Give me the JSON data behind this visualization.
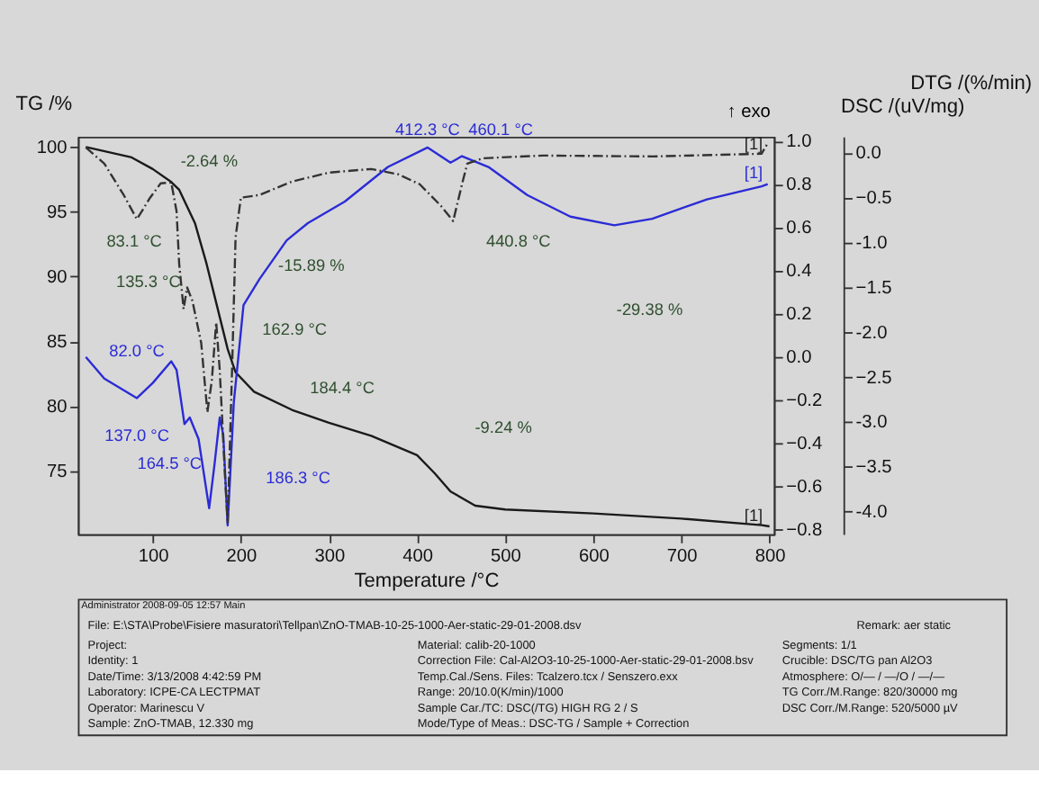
{
  "chart_data": [
    {
      "type": "line",
      "xlabel": "Temperature /°C",
      "ylabel": "TG /%",
      "y2label": "DSC /(uV/mg)",
      "y3label": "DTG /(%/min)",
      "xlim": [
        15,
        805
      ],
      "xticks": [
        100,
        200,
        300,
        400,
        500,
        600,
        700,
        800
      ],
      "ylim": [
        70.1,
        100.8
      ],
      "yticks": [
        75,
        80,
        85,
        90,
        95,
        100
      ],
      "y2lim": [
        -0.82,
        1.02
      ],
      "y2ticks": [
        -0.8,
        -0.6,
        -0.4,
        -0.2,
        {
          "value": 0,
          "label": "0.0"
        },
        0.2,
        0.4,
        0.6,
        0.8,
        {
          "value": 1,
          "label": "1.0"
        }
      ],
      "y3lim": [
        -4.25,
        0.18
      ],
      "y3ticks": [
        {
          "value": -4,
          "label": "-4.0"
        },
        -3.5,
        {
          "value": -3,
          "label": "-3.0"
        },
        -2.5,
        {
          "value": -2,
          "label": "-2.0"
        },
        -1.5,
        {
          "value": -1,
          "label": "-1.0"
        },
        -0.5,
        {
          "value": 0,
          "label": "0.0"
        }
      ],
      "grid": false,
      "marker": "none",
      "series": [
        {
          "color": "#1a1a1a",
          "axis": "y",
          "line_style": "solid",
          "x": [
            24,
            76,
            100,
            121,
            130,
            148,
            161,
            173,
            185,
            194,
            215,
            258,
            300,
            348,
            400,
            420,
            438,
            466,
            500,
            600,
            700,
            791,
            800
          ],
          "values": [
            100,
            99.2,
            98.3,
            97.3,
            96.7,
            94.1,
            91.0,
            87.7,
            84.4,
            82.6,
            81.1,
            79.7,
            78.7,
            77.7,
            76.2,
            74.8,
            73.4,
            72.3,
            72.0,
            71.7,
            71.3,
            70.8,
            70.7
          ]
        },
        {
          "color": "#2b2bd6",
          "axis": "y2",
          "line_style": "solid",
          "x": [
            24,
            45,
            82,
            100,
            121,
            127,
            136,
            142,
            152,
            164,
            170,
            176,
            180,
            185,
            192,
            203,
            221,
            252,
            276,
            318,
            367,
            412,
            438,
            451,
            481,
            525,
            574,
            624,
            667,
            729,
            791,
            798
          ],
          "values": [
            0.0,
            -0.1,
            -0.19,
            -0.12,
            -0.02,
            -0.06,
            -0.31,
            -0.28,
            -0.38,
            -0.7,
            -0.5,
            -0.28,
            -0.36,
            -0.78,
            -0.21,
            0.24,
            0.36,
            0.54,
            0.62,
            0.72,
            0.88,
            0.97,
            0.9,
            0.93,
            0.88,
            0.75,
            0.65,
            0.61,
            0.64,
            0.73,
            0.79,
            0.8
          ]
        },
        {
          "color": "#333333",
          "axis": "y3",
          "line_style": "dashed",
          "x": [
            24,
            45,
            67,
            82,
            97,
            109,
            121,
            127,
            130,
            135,
            139,
            145,
            155,
            162,
            167,
            172,
            176,
            182,
            185,
            190,
            194,
            200,
            221,
            258,
            300,
            348,
            379,
            403,
            427,
            441,
            451,
            457,
            475,
            543,
            667,
            791,
            797
          ],
          "values": [
            0.06,
            -0.12,
            -0.47,
            -0.74,
            -0.5,
            -0.34,
            -0.33,
            -0.65,
            -1.24,
            -1.74,
            -1.5,
            -1.65,
            -2.12,
            -2.89,
            -2.54,
            -1.89,
            -2.42,
            -3.6,
            -4.13,
            -2.42,
            -0.94,
            -0.5,
            -0.47,
            -0.32,
            -0.22,
            -0.18,
            -0.24,
            -0.35,
            -0.59,
            -0.76,
            -0.35,
            -0.12,
            -0.06,
            -0.03,
            -0.04,
            -0.01,
            0.09
          ]
        }
      ],
      "annotations": [
        "↑ exo",
        "-2.64 %",
        "83.1 °C",
        "135.3 °C",
        "-15.89 %",
        "162.9 °C",
        "82.0 °C",
        "184.4 °C",
        "137.0 °C",
        "164.5 °C",
        "186.3 °C",
        "412.3 °C",
        "460.1 °C",
        "440.8 °C",
        "-29.38 %",
        "-9.24 %",
        "[1]",
        "[1]",
        "[1]"
      ]
    },
    {
      "type": "other",
      "annotations": [
        "Administrator 2008-09-05 12:57 Main",
        "File: E:\\STA\\Probe\\Fisiere masuratori\\Tellpan\\ZnO-TMAB-10-25-1000-Aer-static-29-01-2008.dsv",
        "Remark: aer static",
        "Project:",
        "Identity: 1",
        "Date/Time: 3/13/2008 4:42:59 PM",
        "Laboratory: ICPE-CA LECTPMAT",
        "Operator: Marinescu V",
        "Sample: ZnO-TMAB, 12.330 mg",
        "Material: calib-20-1000",
        "Correction File: Cal-Al2O3-10-25-1000-Aer-static-29-01-2008.bsv",
        "Temp.Cal./Sens. Files: Tcalzero.tcx / Senszero.exx",
        "Range: 20/10.0(K/min)/1000",
        "Sample Car./TC: DSC(/TG) HIGH RG 2 / S",
        "Mode/Type of Meas.: DSC-TG / Sample + Correction",
        "Segments: 1/1",
        "Crucible: DSC/TG pan Al2O3",
        "Atmosphere: O/— / —/O / —/—",
        "TG Corr./M.Range: 820/30000 mg",
        "DSC Corr./M.Range: 520/5000 µV"
      ]
    }
  ]
}
